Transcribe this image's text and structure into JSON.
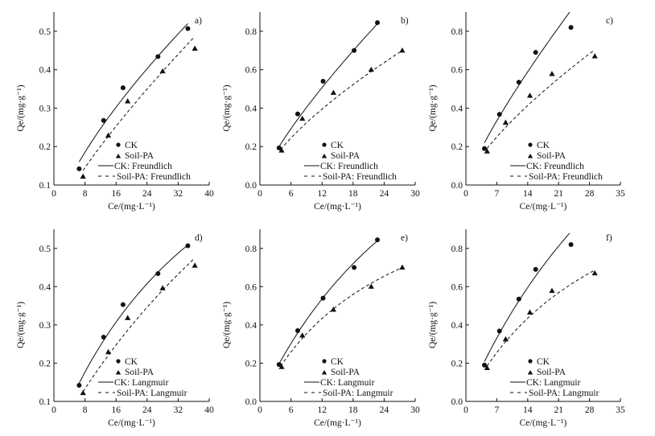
{
  "chart_data": [
    {
      "id": "a",
      "type": "scatter",
      "panel_label": "a)",
      "fit_model": "Freundlich",
      "xlabel": "Ce/(mg·L⁻¹)",
      "ylabel": "Qe/(mg·g⁻¹)",
      "xlim": [
        0,
        40
      ],
      "ylim": [
        0.1,
        0.55
      ],
      "xticks": [
        0,
        8,
        16,
        24,
        32,
        40
      ],
      "yticks": [
        0.1,
        0.2,
        0.3,
        0.4,
        0.5
      ],
      "ytick_decimals": 1,
      "series": [
        {
          "name": "CK",
          "marker": "circle",
          "x": [
            6.5,
            12.8,
            17.8,
            26.8,
            34.5
          ],
          "y": [
            0.142,
            0.268,
            0.353,
            0.434,
            0.507
          ]
        },
        {
          "name": "Soil-PA",
          "marker": "triangle",
          "x": [
            7.5,
            14,
            19,
            28,
            36.3
          ],
          "y": [
            0.122,
            0.229,
            0.318,
            0.396,
            0.455
          ]
        }
      ],
      "fits": [
        {
          "name": "CK: Freundlich",
          "style": "solid",
          "model": "freundlich",
          "K": 0.0427,
          "n": 0.706,
          "xrange": [
            6.5,
            34.5
          ]
        },
        {
          "name": "Soil-PA: Freundlich",
          "style": "dashed",
          "model": "freundlich",
          "K": 0.0275,
          "n": 0.8,
          "xrange": [
            7.5,
            36
          ]
        }
      ]
    },
    {
      "id": "b",
      "type": "scatter",
      "panel_label": "b)",
      "fit_model": "Freundlich",
      "xlabel": "Ce/(mg·L⁻¹)",
      "ylabel": "Qe/(mg·g⁻¹)",
      "xlim": [
        0,
        30
      ],
      "ylim": [
        0,
        0.9
      ],
      "xticks": [
        0,
        6,
        12,
        18,
        24,
        30
      ],
      "yticks": [
        0,
        0.2,
        0.4,
        0.6,
        0.8
      ],
      "ytick_decimals": 1,
      "series": [
        {
          "name": "CK",
          "marker": "circle",
          "x": [
            3.7,
            7.3,
            12.2,
            18.2,
            22.7
          ],
          "y": [
            0.193,
            0.37,
            0.54,
            0.7,
            0.845
          ]
        },
        {
          "name": "Soil-PA",
          "marker": "triangle",
          "x": [
            4.2,
            8.2,
            14.2,
            21.5,
            27.5
          ],
          "y": [
            0.18,
            0.345,
            0.48,
            0.6,
            0.7
          ]
        }
      ],
      "fits": [
        {
          "name": "CK: Freundlich",
          "style": "solid",
          "model": "freundlich",
          "K": 0.071,
          "n": 0.791,
          "xrange": [
            3.7,
            22.7
          ]
        },
        {
          "name": "Soil-PA: Freundlich",
          "style": "dashed",
          "model": "freundlich",
          "K": 0.0711,
          "n": 0.69,
          "xrange": [
            4,
            27.5
          ]
        }
      ]
    },
    {
      "id": "c",
      "type": "scatter",
      "panel_label": "c)",
      "fit_model": "Freundlich",
      "xlabel": "Ce/(mg·L⁻¹)",
      "ylabel": "Qe/(mg·g⁻¹)",
      "xlim": [
        0,
        35
      ],
      "ylim": [
        0,
        0.9
      ],
      "xticks": [
        0,
        7,
        14,
        21,
        28,
        35
      ],
      "yticks": [
        0,
        0.2,
        0.4,
        0.6,
        0.8
      ],
      "ytick_decimals": 1,
      "series": [
        {
          "name": "CK",
          "marker": "circle",
          "x": [
            4.2,
            7.6,
            12,
            15.8,
            23.8
          ],
          "y": [
            0.19,
            0.368,
            0.535,
            0.69,
            0.82
          ]
        },
        {
          "name": "Soil-PA",
          "marker": "triangle",
          "x": [
            4.8,
            9,
            14.5,
            19.5,
            29.2
          ],
          "y": [
            0.175,
            0.325,
            0.465,
            0.578,
            0.67
          ]
        }
      ],
      "fits": [
        {
          "name": "CK: Freundlich",
          "style": "solid",
          "model": "freundlich",
          "K": 0.068,
          "n": 0.818,
          "xrange": [
            4.2,
            24
          ]
        },
        {
          "name": "Soil-PA: Freundlich",
          "style": "dashed",
          "model": "freundlich",
          "K": 0.061,
          "n": 0.725,
          "xrange": [
            4.8,
            29
          ]
        }
      ]
    },
    {
      "id": "d",
      "type": "scatter",
      "panel_label": "d)",
      "fit_model": "Langmuir",
      "xlabel": "Ce/(mg·L⁻¹)",
      "ylabel": "Qe/(mg·g⁻¹)",
      "xlim": [
        0,
        40
      ],
      "ylim": [
        0.1,
        0.55
      ],
      "xticks": [
        0,
        8,
        16,
        24,
        32,
        40
      ],
      "yticks": [
        0.1,
        0.2,
        0.3,
        0.4,
        0.5
      ],
      "ytick_decimals": 1,
      "series": [
        {
          "name": "CK",
          "marker": "circle",
          "x": [
            6.5,
            12.8,
            17.8,
            26.8,
            34.5
          ],
          "y": [
            0.142,
            0.268,
            0.353,
            0.434,
            0.507
          ]
        },
        {
          "name": "Soil-PA",
          "marker": "triangle",
          "x": [
            7.5,
            14,
            19,
            28,
            36.3
          ],
          "y": [
            0.122,
            0.229,
            0.318,
            0.396,
            0.455
          ]
        }
      ],
      "fits": [
        {
          "name": "CK: Langmuir",
          "style": "solid",
          "model": "langmuir",
          "Qm": 1.18,
          "KL": 0.022,
          "xrange": [
            6.5,
            34.5
          ]
        },
        {
          "name": "Soil-PA: Langmuir",
          "style": "dashed",
          "model": "langmuir",
          "Qm": 1.72,
          "KL": 0.0105,
          "xrange": [
            7.5,
            36
          ]
        }
      ]
    },
    {
      "id": "e",
      "type": "scatter",
      "panel_label": "e)",
      "fit_model": "Langmuir",
      "xlabel": "Ce/(mg·L⁻¹)",
      "ylabel": "Qe/(mg·g⁻¹)",
      "xlim": [
        0,
        30
      ],
      "ylim": [
        0,
        0.9
      ],
      "xticks": [
        0,
        6,
        12,
        18,
        24,
        30
      ],
      "yticks": [
        0,
        0.2,
        0.4,
        0.6,
        0.8
      ],
      "ytick_decimals": 1,
      "series": [
        {
          "name": "CK",
          "marker": "circle",
          "x": [
            3.7,
            7.3,
            12.2,
            18.2,
            22.7
          ],
          "y": [
            0.193,
            0.37,
            0.54,
            0.7,
            0.845
          ]
        },
        {
          "name": "Soil-PA",
          "marker": "triangle",
          "x": [
            4.2,
            8.2,
            14.2,
            21.5,
            27.5
          ],
          "y": [
            0.18,
            0.345,
            0.48,
            0.6,
            0.7
          ]
        }
      ],
      "fits": [
        {
          "name": "CK: Langmuir",
          "style": "solid",
          "model": "langmuir",
          "Qm": 2.32,
          "KL": 0.025,
          "xrange": [
            3.7,
            22.7
          ]
        },
        {
          "name": "Soil-PA: Langmuir",
          "style": "dashed",
          "model": "langmuir",
          "Qm": 1.336,
          "KL": 0.04,
          "xrange": [
            4,
            27.5
          ]
        }
      ]
    },
    {
      "id": "f",
      "type": "scatter",
      "panel_label": "f)",
      "fit_model": "Langmuir",
      "xlabel": "Ce/(mg·L⁻¹)",
      "ylabel": "Qe/(mg·g⁻¹)",
      "xlim": [
        0,
        35
      ],
      "ylim": [
        0,
        0.9
      ],
      "xticks": [
        0,
        7,
        14,
        21,
        28,
        35
      ],
      "yticks": [
        0,
        0.2,
        0.4,
        0.6,
        0.8
      ],
      "ytick_decimals": 1,
      "series": [
        {
          "name": "CK",
          "marker": "circle",
          "x": [
            4.2,
            7.6,
            12,
            15.8,
            23.8
          ],
          "y": [
            0.19,
            0.368,
            0.535,
            0.69,
            0.82
          ]
        },
        {
          "name": "Soil-PA",
          "marker": "triangle",
          "x": [
            4.8,
            9,
            14.5,
            19.5,
            29.2
          ],
          "y": [
            0.175,
            0.325,
            0.465,
            0.578,
            0.67
          ]
        }
      ],
      "fits": [
        {
          "name": "CK: Langmuir",
          "style": "solid",
          "model": "langmuir",
          "Qm": 2.96,
          "KL": 0.018,
          "xrange": [
            4.2,
            23.5
          ]
        },
        {
          "name": "Soil-PA: Langmuir",
          "style": "dashed",
          "model": "langmuir",
          "Qm": 1.47,
          "KL": 0.03,
          "xrange": [
            4.8,
            29
          ]
        }
      ]
    }
  ]
}
